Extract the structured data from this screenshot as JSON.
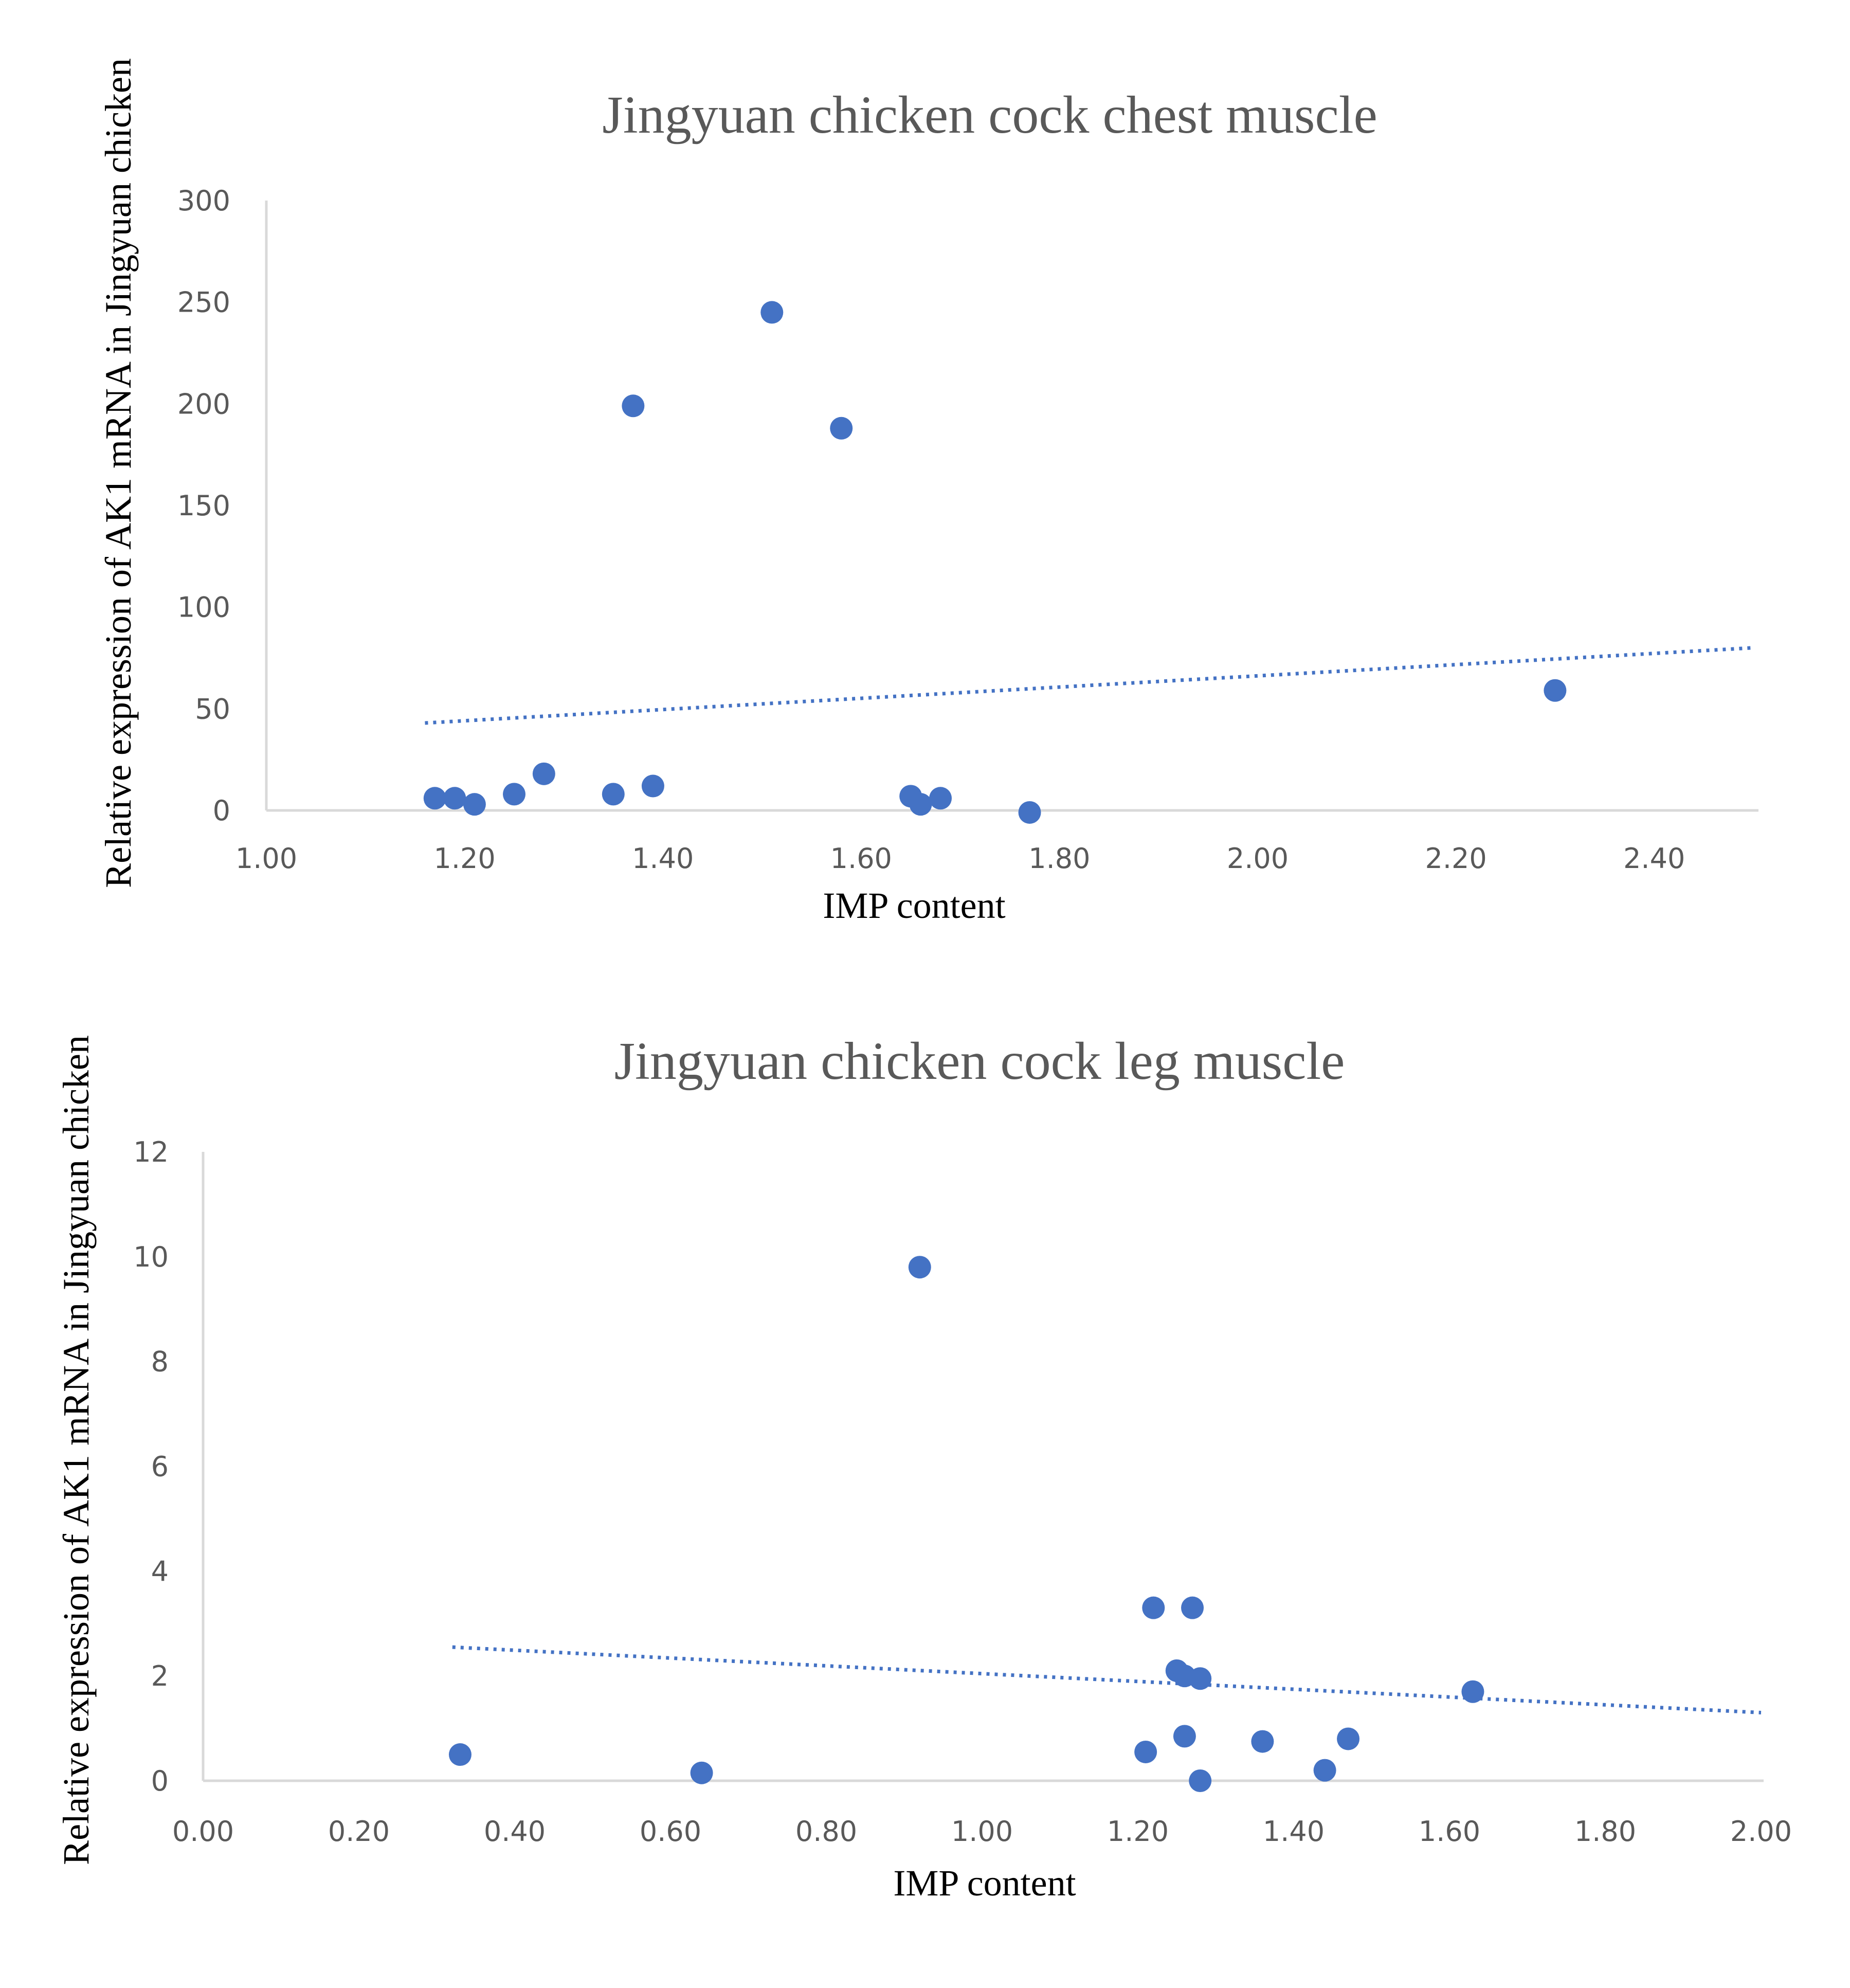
{
  "chart_data": [
    {
      "type": "scatter",
      "title": "Jingyuan  chicken cock chest muscle",
      "xlabel": "IMP content",
      "ylabel": "Relative expression of AK1 mRNA in Jingyuan chicken",
      "xlim": [
        1.0,
        2.5
      ],
      "ylim": [
        0,
        300
      ],
      "x_ticks": [
        "1.00",
        "1.20",
        "1.40",
        "1.60",
        "1.80",
        "2.00",
        "2.20",
        "2.40"
      ],
      "x_tick_values": [
        1.0,
        1.2,
        1.4,
        1.6,
        1.8,
        2.0,
        2.2,
        2.4
      ],
      "y_ticks": [
        "0",
        "50",
        "100",
        "150",
        "200",
        "250",
        "300"
      ],
      "y_tick_values": [
        0,
        50,
        100,
        150,
        200,
        250,
        300
      ],
      "grid": false,
      "color": "#4472c4",
      "points": [
        {
          "x": 1.17,
          "y": 6
        },
        {
          "x": 1.19,
          "y": 6
        },
        {
          "x": 1.21,
          "y": 3
        },
        {
          "x": 1.25,
          "y": 8
        },
        {
          "x": 1.28,
          "y": 18
        },
        {
          "x": 1.35,
          "y": 8
        },
        {
          "x": 1.39,
          "y": 12
        },
        {
          "x": 1.37,
          "y": 199
        },
        {
          "x": 1.51,
          "y": 245
        },
        {
          "x": 1.58,
          "y": 188
        },
        {
          "x": 1.65,
          "y": 7
        },
        {
          "x": 1.66,
          "y": 3
        },
        {
          "x": 1.68,
          "y": 6
        },
        {
          "x": 1.77,
          "y": -1
        },
        {
          "x": 2.3,
          "y": 59
        }
      ],
      "trendline": {
        "style": "dotted",
        "from": {
          "x": 1.16,
          "y": 43
        },
        "to": {
          "x": 2.5,
          "y": 80
        }
      }
    },
    {
      "type": "scatter",
      "title": "Jingyuan  chicken cock leg muscle",
      "xlabel": "IMP content",
      "ylabel": "Relative expression of AK1 mRNA in Jingyuan chicken",
      "xlim": [
        0.0,
        2.0
      ],
      "ylim": [
        0,
        12
      ],
      "x_ticks": [
        "0.00",
        "0.20",
        "0.40",
        "0.60",
        "0.80",
        "1.00",
        "1.20",
        "1.40",
        "1.60",
        "1.80",
        "2.00"
      ],
      "x_tick_values": [
        0.0,
        0.2,
        0.4,
        0.6,
        0.8,
        1.0,
        1.2,
        1.4,
        1.6,
        1.8,
        2.0
      ],
      "y_ticks": [
        "0",
        "2",
        "4",
        "6",
        "8",
        "10",
        "12"
      ],
      "y_tick_values": [
        0,
        2,
        4,
        6,
        8,
        10,
        12
      ],
      "grid": false,
      "color": "#4472c4",
      "points": [
        {
          "x": 0.33,
          "y": 0.5
        },
        {
          "x": 0.64,
          "y": 0.15
        },
        {
          "x": 0.92,
          "y": 9.8
        },
        {
          "x": 1.21,
          "y": 0.55
        },
        {
          "x": 1.22,
          "y": 3.3
        },
        {
          "x": 1.25,
          "y": 2.1
        },
        {
          "x": 1.26,
          "y": 2.0
        },
        {
          "x": 1.26,
          "y": 0.85
        },
        {
          "x": 1.27,
          "y": 3.3
        },
        {
          "x": 1.28,
          "y": 1.95
        },
        {
          "x": 1.28,
          "y": 0.0
        },
        {
          "x": 1.36,
          "y": 0.75
        },
        {
          "x": 1.44,
          "y": 0.2
        },
        {
          "x": 1.47,
          "y": 0.8
        },
        {
          "x": 1.63,
          "y": 1.7
        }
      ],
      "trendline": {
        "style": "dotted",
        "from": {
          "x": 0.32,
          "y": 2.55
        },
        "to": {
          "x": 2.0,
          "y": 1.3
        }
      }
    }
  ]
}
